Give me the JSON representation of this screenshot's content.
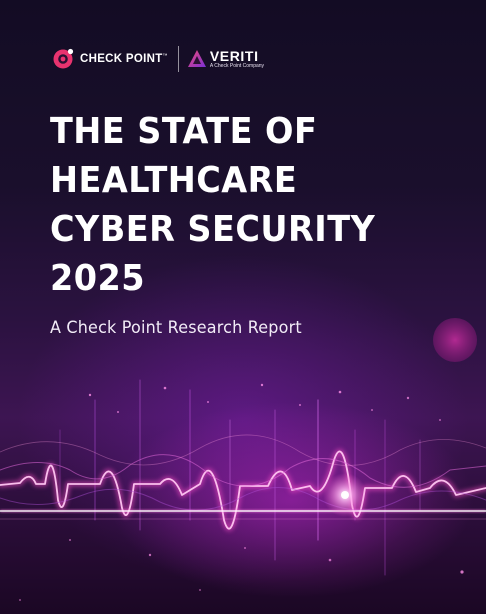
{
  "logos": {
    "checkpoint_name": "CHECK POINT",
    "checkpoint_tm": "™",
    "veriti_name": "VERITI",
    "veriti_tagline": "A Check Point Company"
  },
  "title_lines": [
    "THE STATE OF",
    "HEALTHCARE",
    "CYBER SECURITY",
    "2025"
  ],
  "subtitle": "A Check Point Research Report",
  "colors": {
    "brand_pink": "#e8336f",
    "veriti_gradient_start": "#f04a7a",
    "veriti_gradient_end": "#7a2fd6",
    "background_top": "#130c24",
    "background_bottom": "#3d1552",
    "wave": "#ff6ad5"
  }
}
